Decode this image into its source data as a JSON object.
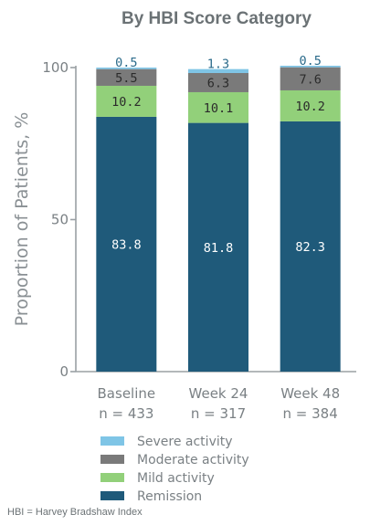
{
  "chart_data": {
    "type": "bar",
    "stacked": true,
    "title": "By HBI Score Category",
    "ylabel": "Proportion of Patients, %",
    "ylim": [
      0,
      100
    ],
    "yticks": [
      "0",
      "50",
      "100"
    ],
    "categories": [
      {
        "label": "Baseline",
        "sublabel": "n = 433"
      },
      {
        "label": "Week 24",
        "sublabel": "n = 317"
      },
      {
        "label": "Week 48",
        "sublabel": "n = 384"
      }
    ],
    "series": [
      {
        "name": "Remission",
        "color": "#1f5a7a",
        "values": [
          83.8,
          81.8,
          82.3
        ],
        "labels": [
          "83.8",
          "81.8",
          "82.3"
        ]
      },
      {
        "name": "Mild activity",
        "color": "#92d07a",
        "values": [
          10.2,
          10.1,
          10.2
        ],
        "labels": [
          "10.2",
          "10.1",
          "10.2"
        ]
      },
      {
        "name": "Moderate activity",
        "color": "#7a7a7a",
        "values": [
          5.5,
          6.3,
          7.6
        ],
        "labels": [
          "5.5",
          "6.3",
          "7.6"
        ]
      },
      {
        "name": "Severe activity",
        "color": "#7fc5e6",
        "values": [
          0.5,
          1.3,
          0.5
        ],
        "labels": [
          "0.5",
          "1.3",
          "0.5"
        ]
      }
    ],
    "legend_order": [
      "Severe activity",
      "Moderate activity",
      "Mild activity",
      "Remission"
    ],
    "legend_position": "bottom-center"
  },
  "footnote": "HBI = Harvey Bradshaw Index"
}
